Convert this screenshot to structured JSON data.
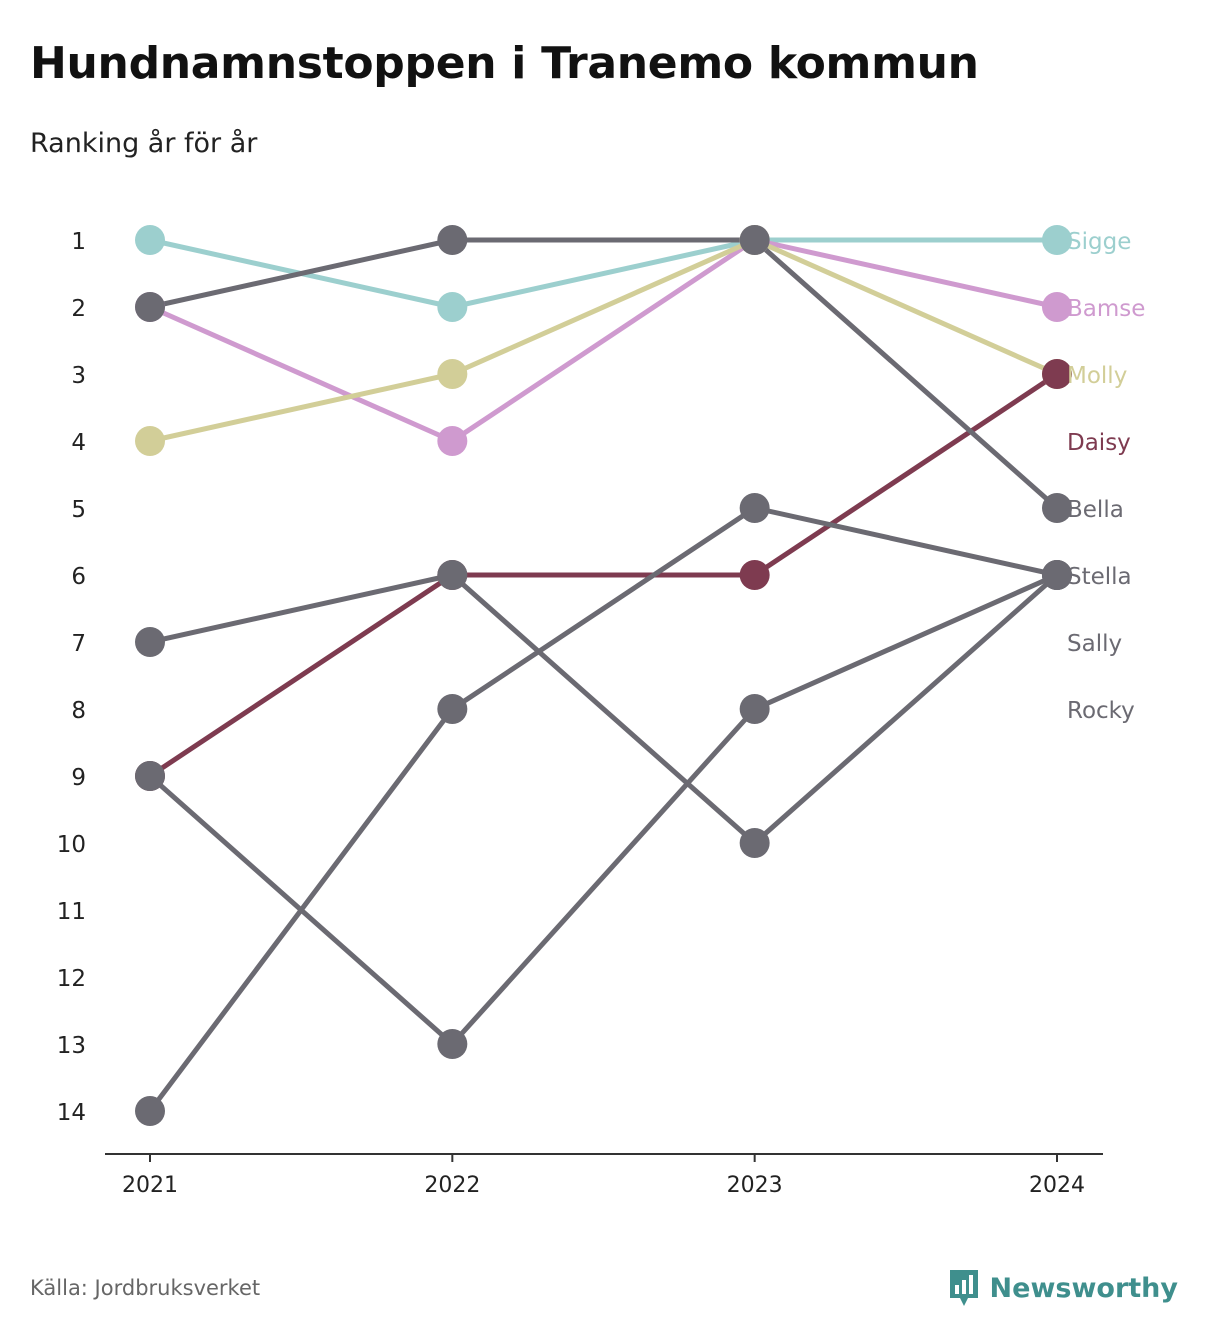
{
  "header": {
    "title": "Hundnamnstoppen i Tranemo kommun",
    "subtitle": "Ranking år för år"
  },
  "footer": {
    "source": "Källa: Jordbruksverket",
    "brand": "Newsworthy",
    "brand_icon": "newsworthy-chart-bubble-icon"
  },
  "colors": {
    "grey": "#6b6a72",
    "brand": "#3f8f8d"
  },
  "chart_data": {
    "type": "line",
    "x": [
      "2021",
      "2022",
      "2023",
      "2024"
    ],
    "y_ticks": [
      1,
      2,
      3,
      4,
      5,
      6,
      7,
      8,
      9,
      10,
      11,
      12,
      13,
      14
    ],
    "y_reversed": true,
    "ylim": [
      1,
      14
    ],
    "grid": false,
    "legend": "right-end labels",
    "series": [
      {
        "name": "Sigge",
        "color": "#9ccfce",
        "values": [
          1,
          2,
          1,
          1
        ]
      },
      {
        "name": "Bamse",
        "color": "#cf9acf",
        "values": [
          2,
          4,
          1,
          2
        ]
      },
      {
        "name": "Molly",
        "color": "#d2ce98",
        "values": [
          4,
          3,
          1,
          3
        ]
      },
      {
        "name": "Daisy",
        "color": "#7e3b50",
        "values": [
          9,
          6,
          6,
          3
        ]
      },
      {
        "name": "Bella",
        "color": "#6b6a72",
        "values": [
          2,
          1,
          1,
          5
        ]
      },
      {
        "name": "Stella",
        "color": "#6b6a72",
        "values": [
          14,
          8,
          5,
          6
        ]
      },
      {
        "name": "Sally",
        "color": "#6b6a72",
        "values": [
          7,
          6,
          10,
          6
        ]
      },
      {
        "name": "Rocky",
        "color": "#6b6a72",
        "values": [
          9,
          13,
          8,
          6
        ]
      }
    ]
  }
}
